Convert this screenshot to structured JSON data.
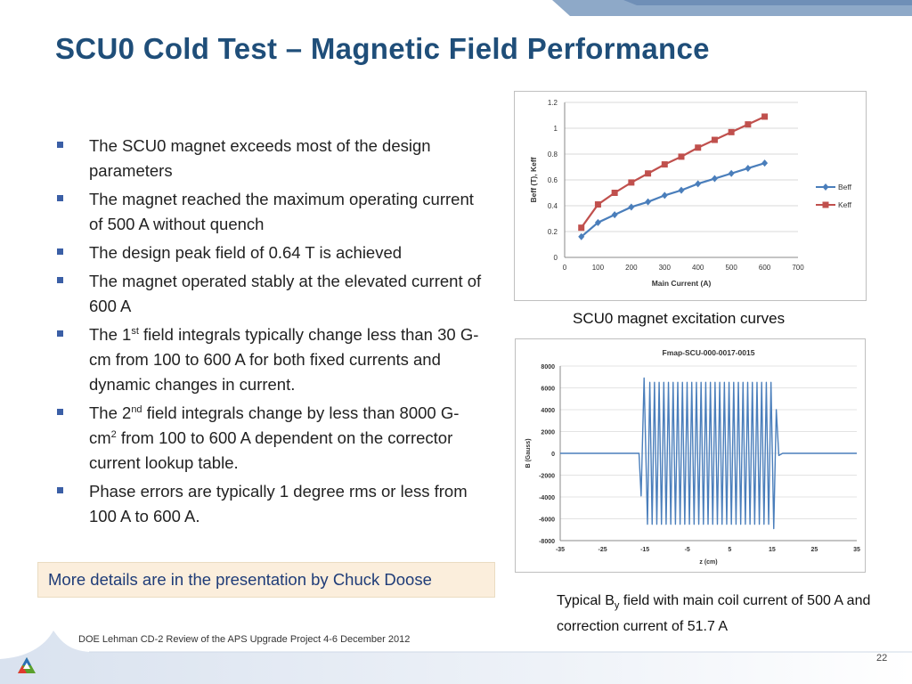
{
  "slide": {
    "title": "SCU0 Cold Test – Magnetic Field Performance",
    "bullets": [
      {
        "parts": [
          "The SCU0 magnet exceeds most of the design parameters"
        ]
      },
      {
        "parts": [
          "The magnet reached the maximum operating current of 500 A without quench"
        ]
      },
      {
        "parts": [
          "The design peak field of 0.64 T is achieved"
        ]
      },
      {
        "parts": [
          "The magnet operated stably at the elevated current of 600 A"
        ]
      },
      {
        "parts": [
          "The 1",
          "st",
          " field integrals typically change less than 30 G-cm from 100 to 600 A for both fixed currents and dynamic changes in current."
        ]
      },
      {
        "parts": [
          "The 2",
          "nd",
          " field integrals change by less than 8000 G-cm",
          "2",
          " from 100 to 600 A dependent on the corrector current lookup table."
        ]
      },
      {
        "parts": [
          "Phase errors are typically 1 degree rms or less from 100 A to 600 A."
        ]
      }
    ],
    "callout": "More details are in the presentation by Chuck Doose",
    "footer": "DOE Lehman CD-2 Review of the APS Upgrade Project    4-6 December  2012",
    "page_number": "22",
    "colors": {
      "title": "#1f4e79",
      "bullet": "#3b5fa6",
      "callout_bg": "#fbeedc",
      "beff": "#4a7ebb",
      "keff": "#c0504d",
      "field": "#4a7ebb"
    }
  },
  "captions": {
    "excitation": "SCU0 magnet excitation curves",
    "field_prefix": "Typical B",
    "field_sub": "y",
    "field_suffix": " field with main coil current of 500 A and correction current of 51.7 A"
  },
  "chart_data": [
    {
      "type": "line",
      "title": "",
      "xlabel": "Main Current (A)",
      "ylabel": "Beff (T), Keff",
      "xlim": [
        0,
        700
      ],
      "ylim": [
        0,
        1.2
      ],
      "xticks": [
        "0",
        "100",
        "200",
        "300",
        "400",
        "500",
        "600",
        "700"
      ],
      "yticks": [
        "0",
        "0.2",
        "0.4",
        "0.6",
        "0.8",
        "1",
        "1.2"
      ],
      "grid": "horizontal",
      "legend": "right",
      "x": [
        50,
        100,
        150,
        200,
        250,
        300,
        350,
        400,
        450,
        500,
        550,
        600
      ],
      "series": [
        {
          "name": "Beff",
          "marker": "diamond",
          "color": "#4a7ebb",
          "values": [
            0.16,
            0.27,
            0.33,
            0.39,
            0.43,
            0.48,
            0.52,
            0.57,
            0.61,
            0.65,
            0.69,
            0.73
          ]
        },
        {
          "name": "Keff",
          "marker": "square",
          "color": "#c0504d",
          "values": [
            0.23,
            0.41,
            0.5,
            0.58,
            0.65,
            0.72,
            0.78,
            0.85,
            0.91,
            0.97,
            1.03,
            1.09
          ]
        }
      ]
    },
    {
      "type": "line",
      "title": "Fmap-SCU-000-0017-0015",
      "xlabel": "z (cm)",
      "ylabel": "B (Gauss)",
      "xlim": [
        -35,
        35
      ],
      "ylim": [
        -8000,
        8000
      ],
      "xticks": [
        "-35",
        "-25",
        "-15",
        "-5",
        "5",
        "15",
        "25",
        "35"
      ],
      "yticks": [
        "-8000",
        "-6000",
        "-4000",
        "-2000",
        "0",
        "2000",
        "4000",
        "6000",
        "8000"
      ],
      "grid": "horizontal",
      "series": [
        {
          "name": "",
          "color": "#4a7ebb",
          "x": [
            -35,
            -17,
            -16.4,
            -15.9,
            -15.2,
            -14.4,
            -13.85,
            -13.3,
            -12.75,
            -12.2,
            -11.65,
            -11.1,
            -10.55,
            -10,
            -9.45,
            -8.9,
            -8.35,
            -7.8,
            -7.25,
            -6.7,
            -6.15,
            -5.6,
            -5.05,
            -4.5,
            -3.95,
            -3.4,
            -2.85,
            -2.3,
            -1.75,
            -1.2,
            -0.65,
            -0.1,
            0.45,
            1.0,
            1.55,
            2.1,
            2.65,
            3.2,
            3.75,
            4.3,
            4.85,
            5.4,
            5.95,
            6.5,
            7.05,
            7.6,
            8.15,
            8.7,
            9.25,
            9.8,
            10.35,
            10.9,
            11.45,
            12.0,
            12.55,
            13.1,
            13.65,
            14.2,
            14.75,
            15.4,
            16.0,
            16.6,
            17.5,
            35
          ],
          "values": [
            0,
            0,
            0,
            -3900,
            6900,
            -6500,
            6500,
            -6500,
            6500,
            -6500,
            6500,
            -6500,
            6500,
            -6500,
            6500,
            -6500,
            6500,
            -6500,
            6500,
            -6500,
            6500,
            -6500,
            6500,
            -6500,
            6500,
            -6500,
            6500,
            -6500,
            6500,
            -6500,
            6500,
            -6500,
            6500,
            -6500,
            6500,
            -6500,
            6500,
            -6500,
            6500,
            -6500,
            6500,
            -6500,
            6500,
            -6500,
            6500,
            -6500,
            6500,
            -6500,
            6500,
            -6500,
            6500,
            -6500,
            6500,
            -6500,
            6500,
            -6500,
            6500,
            -6500,
            6500,
            -6900,
            4000,
            -200,
            0,
            0
          ]
        }
      ]
    }
  ]
}
